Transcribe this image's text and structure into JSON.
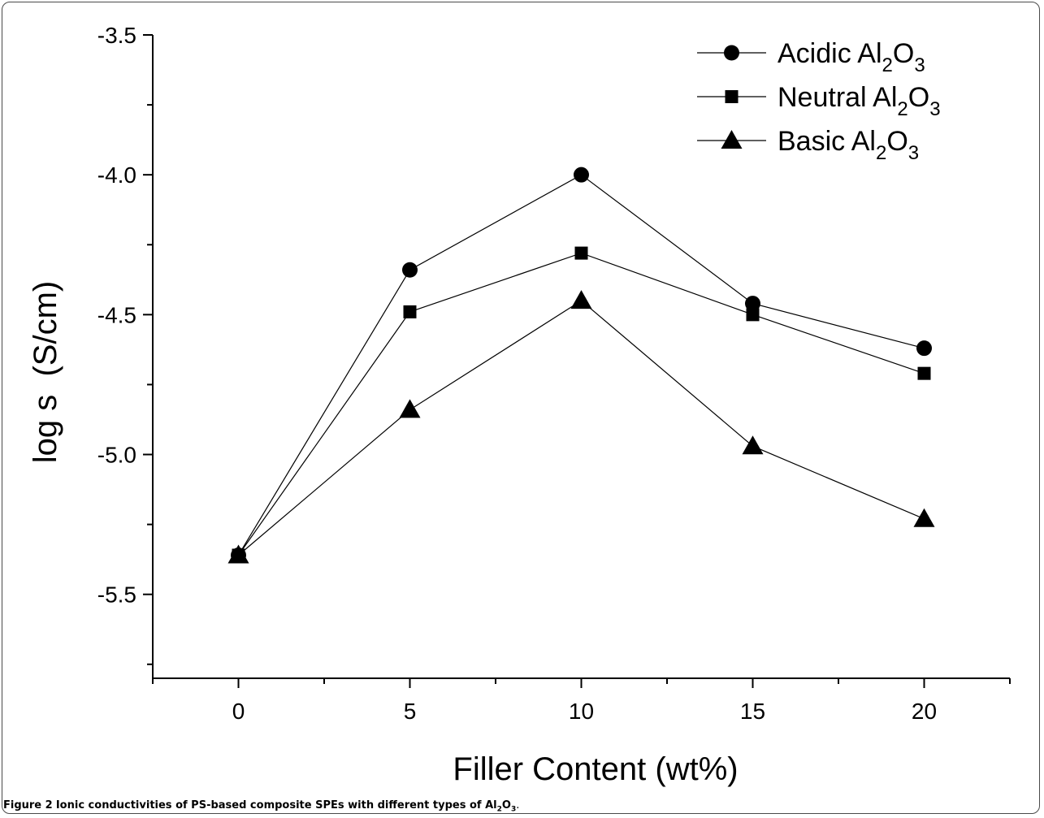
{
  "chart_data": {
    "type": "line",
    "xlabel": "Filler Content (wt%)",
    "ylabel": "log s  (S/cm)",
    "xlim": [
      -2.5,
      22.5
    ],
    "ylim": [
      -5.8,
      -3.5
    ],
    "x_ticks": [
      0,
      5,
      10,
      15,
      20
    ],
    "x_tick_labels": [
      "0",
      "5",
      "10",
      "15",
      "20"
    ],
    "y_ticks": [
      -3.5,
      -4.0,
      -4.5,
      -5.0,
      -5.5
    ],
    "y_tick_labels": [
      "-3.5",
      "-4.0",
      "-4.5",
      "-5.0",
      "-5.5"
    ],
    "grid": false,
    "legend_position": "top-right",
    "x": [
      0,
      5,
      10,
      15,
      20
    ],
    "series": [
      {
        "name": "Acidic Al2O3",
        "legend_main": "Acidic Al",
        "sub1": "2",
        "mid": "O",
        "sub2": "3",
        "marker": "circle",
        "values": [
          -5.36,
          -4.34,
          -4.0,
          -4.46,
          -4.62
        ]
      },
      {
        "name": "Neutral Al2O3",
        "legend_main": "Neutral Al",
        "sub1": "2",
        "mid": "O",
        "sub2": "3",
        "marker": "square",
        "values": [
          -5.36,
          -4.49,
          -4.28,
          -4.5,
          -4.71
        ]
      },
      {
        "name": "Basic Al2O3",
        "legend_main": "Basic Al",
        "sub1": "2",
        "mid": "O",
        "sub2": "3",
        "marker": "triangle",
        "values": [
          -5.36,
          -4.84,
          -4.45,
          -4.97,
          -5.23
        ]
      }
    ]
  },
  "caption": {
    "label": "Figure 2",
    "text": "Ionic conductivities of PS-based composite SPEs with different types of Al",
    "sub1": "2",
    "mid": "O",
    "sub2": "3",
    "end": "."
  }
}
